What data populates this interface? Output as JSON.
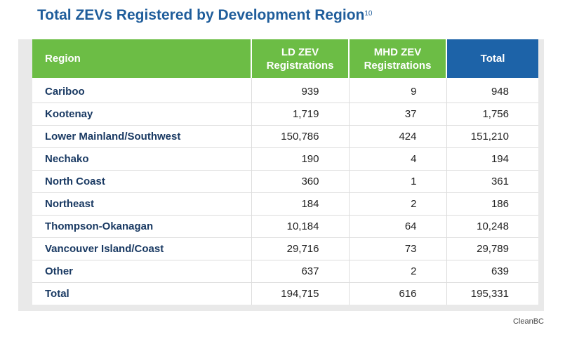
{
  "title": "Total ZEVs Registered by Development Region",
  "title_footnote": "10",
  "source": "CleanBC",
  "colors": {
    "header_green": "#6cbd45",
    "header_blue": "#1d63a8",
    "title": "#1f5d9b",
    "region_text": "#1a3a63"
  },
  "chart_data": {
    "type": "table",
    "title": "Total ZEVs Registered by Development Region",
    "columns": [
      "Region",
      "LD ZEV Registrations",
      "MHD ZEV Registrations",
      "Total"
    ],
    "rows": [
      [
        "Cariboo",
        "939",
        "9",
        "948"
      ],
      [
        "Kootenay",
        "1,719",
        "37",
        "1,756"
      ],
      [
        "Lower Mainland/Southwest",
        "150,786",
        "424",
        "151,210"
      ],
      [
        "Nechako",
        "190",
        "4",
        "194"
      ],
      [
        "North Coast",
        "360",
        "1",
        "361"
      ],
      [
        "Northeast",
        "184",
        "2",
        "186"
      ],
      [
        "Thompson-Okanagan",
        "10,184",
        "64",
        "10,248"
      ],
      [
        "Vancouver Island/Coast",
        "29,716",
        "73",
        "29,789"
      ],
      [
        "Other",
        "637",
        "2",
        "639"
      ],
      [
        "Total",
        "194,715",
        "616",
        "195,331"
      ]
    ]
  }
}
